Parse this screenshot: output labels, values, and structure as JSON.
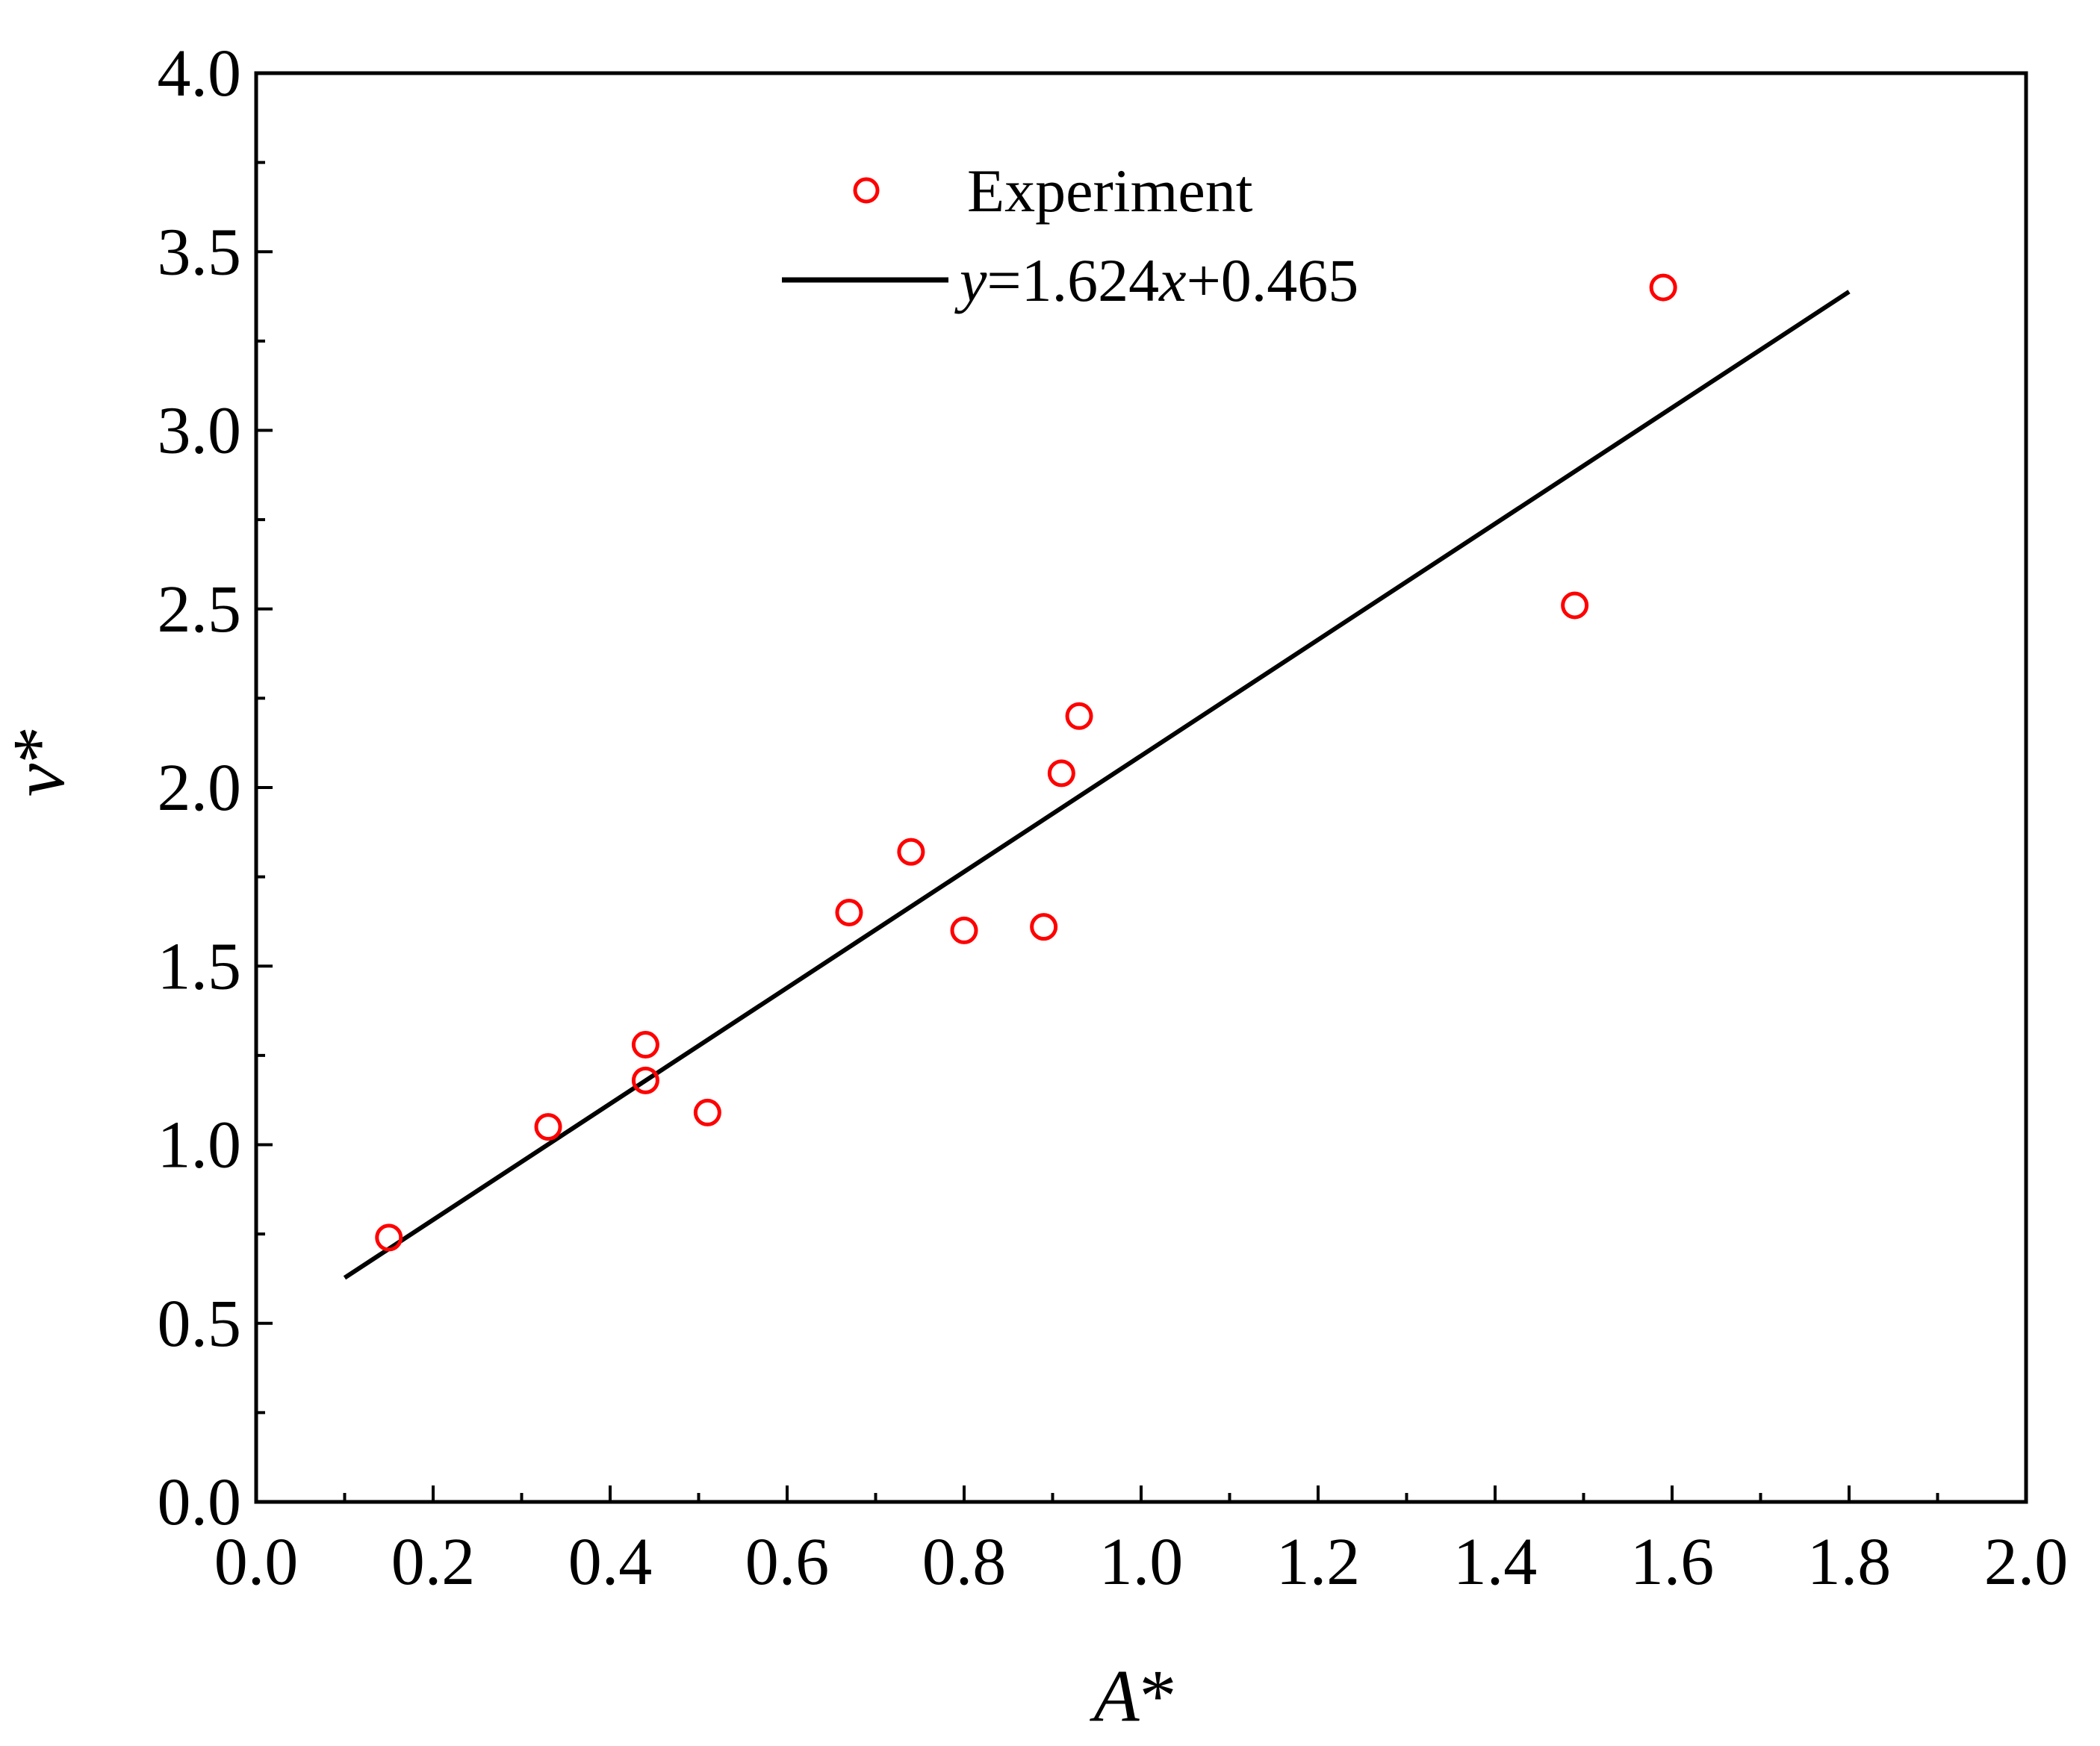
{
  "chart_data": {
    "type": "scatter",
    "title": "",
    "xlabel_main": "A",
    "xlabel_suffix": "*",
    "ylabel_main": "v",
    "ylabel_suffix": "*",
    "xlim": [
      0.0,
      2.0
    ],
    "ylim": [
      0.0,
      4.0
    ],
    "xticks": [
      "0.0",
      "0.2",
      "0.4",
      "0.6",
      "0.8",
      "1.0",
      "1.2",
      "1.4",
      "1.6",
      "1.8",
      "2.0"
    ],
    "yticks": [
      "0.0",
      "0.5",
      "1.0",
      "1.5",
      "2.0",
      "2.5",
      "3.0",
      "3.5",
      "4.0"
    ],
    "x_tick_values": [
      0.0,
      0.2,
      0.4,
      0.6,
      0.8,
      1.0,
      1.2,
      1.4,
      1.6,
      1.8,
      2.0
    ],
    "y_tick_values": [
      0.0,
      0.5,
      1.0,
      1.5,
      2.0,
      2.5,
      3.0,
      3.5,
      4.0
    ],
    "x_minor_step": 0.1,
    "y_minor_step": 0.25,
    "grid": false,
    "legend_position": "top-center",
    "colors": {
      "points": "#ff0000",
      "fit": "#000000",
      "axes": "#000000"
    },
    "series": [
      {
        "name": "Experiment",
        "kind": "scatter",
        "marker": "open-circle",
        "points": [
          {
            "x": 0.15,
            "y": 0.74
          },
          {
            "x": 0.33,
            "y": 1.05
          },
          {
            "x": 0.44,
            "y": 1.28
          },
          {
            "x": 0.44,
            "y": 1.18
          },
          {
            "x": 0.51,
            "y": 1.09
          },
          {
            "x": 0.67,
            "y": 1.65
          },
          {
            "x": 0.74,
            "y": 1.82
          },
          {
            "x": 0.8,
            "y": 1.6
          },
          {
            "x": 0.89,
            "y": 1.61
          },
          {
            "x": 0.91,
            "y": 2.04
          },
          {
            "x": 0.93,
            "y": 2.2
          },
          {
            "x": 1.49,
            "y": 2.51
          },
          {
            "x": 1.59,
            "y": 3.4
          }
        ]
      },
      {
        "name": "y=1.624x+0.465",
        "kind": "line",
        "legend_parts": [
          "y",
          "=1.624",
          "x",
          "+0.465"
        ],
        "slope": 1.624,
        "intercept": 0.465,
        "x_range": [
          0.1,
          1.8
        ]
      }
    ]
  }
}
